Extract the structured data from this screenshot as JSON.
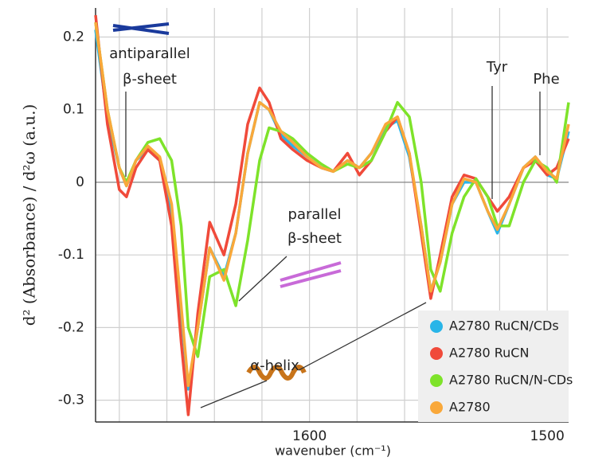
{
  "chart_data": {
    "type": "line",
    "y_label": "d² (Absorbance) / d²ω (a.u.)",
    "x_label": "wavenuber (cm⁻¹)",
    "annotations": [
      "antiparallel",
      "β-sheet",
      "parallel",
      "β-sheet",
      "α-helix",
      "Tyr",
      "Phe"
    ],
    "x": [
      1690,
      1685,
      1680,
      1677,
      1673,
      1668,
      1663,
      1658,
      1654,
      1651,
      1647,
      1642,
      1636,
      1631,
      1626,
      1621,
      1617,
      1612,
      1607,
      1601,
      1595,
      1590,
      1584,
      1579,
      1574,
      1568,
      1563,
      1558,
      1553,
      1549,
      1545,
      1540,
      1535,
      1530,
      1525,
      1521,
      1516,
      1510,
      1505,
      1500,
      1496,
      1491
    ],
    "series": [
      {
        "name": "A2780 RuCN/CDs",
        "color": "#29b5e8",
        "values": [
          0.21,
          0.09,
          0.02,
          -0.005,
          0.03,
          0.045,
          0.03,
          -0.04,
          -0.18,
          -0.285,
          -0.2,
          -0.09,
          -0.13,
          -0.07,
          0.04,
          0.11,
          0.1,
          0.065,
          0.05,
          0.035,
          0.02,
          0.015,
          0.03,
          0.02,
          0.04,
          0.075,
          0.085,
          0.035,
          -0.06,
          -0.15,
          -0.11,
          -0.03,
          0.0,
          0.0,
          -0.04,
          -0.07,
          -0.03,
          0.02,
          0.035,
          0.01,
          0.005,
          0.07
        ]
      },
      {
        "name": "A2780 RuCN",
        "color": "#f04a3a",
        "values": [
          0.23,
          0.08,
          -0.01,
          -0.02,
          0.02,
          0.045,
          0.03,
          -0.06,
          -0.22,
          -0.32,
          -0.18,
          -0.055,
          -0.1,
          -0.03,
          0.08,
          0.13,
          0.11,
          0.06,
          0.045,
          0.03,
          0.02,
          0.015,
          0.04,
          0.01,
          0.03,
          0.07,
          0.09,
          0.04,
          -0.07,
          -0.16,
          -0.1,
          -0.02,
          0.01,
          0.005,
          -0.02,
          -0.04,
          -0.02,
          0.02,
          0.03,
          0.01,
          0.02,
          0.06
        ]
      },
      {
        "name": "A2780 RuCN/N-CDs",
        "color": "#7ee32a",
        "values": [
          0.22,
          0.1,
          0.02,
          0.0,
          0.03,
          0.055,
          0.06,
          0.03,
          -0.06,
          -0.2,
          -0.24,
          -0.13,
          -0.12,
          -0.17,
          -0.08,
          0.03,
          0.075,
          0.07,
          0.06,
          0.04,
          0.025,
          0.015,
          0.025,
          0.02,
          0.03,
          0.07,
          0.11,
          0.09,
          0.0,
          -0.12,
          -0.15,
          -0.07,
          -0.02,
          0.005,
          -0.02,
          -0.06,
          -0.06,
          0.0,
          0.03,
          0.02,
          0.0,
          0.11
        ]
      },
      {
        "name": "A2780",
        "color": "#f9a83a",
        "values": [
          0.22,
          0.1,
          0.02,
          -0.005,
          0.03,
          0.05,
          0.035,
          -0.03,
          -0.17,
          -0.28,
          -0.2,
          -0.09,
          -0.135,
          -0.07,
          0.04,
          0.11,
          0.1,
          0.07,
          0.055,
          0.035,
          0.02,
          0.015,
          0.03,
          0.02,
          0.04,
          0.08,
          0.09,
          0.04,
          -0.06,
          -0.15,
          -0.11,
          -0.03,
          0.005,
          0.0,
          -0.04,
          -0.065,
          -0.03,
          0.02,
          0.035,
          0.015,
          0.005,
          0.08
        ]
      }
    ],
    "xlim": [
      1690,
      1491
    ],
    "xticks": [
      {
        "value": 1680,
        "label": null
      },
      {
        "value": 1660,
        "label": null
      },
      {
        "value": 1640,
        "label": null
      },
      {
        "value": 1620,
        "label": null
      },
      1600,
      {
        "value": 1580,
        "label": null
      },
      {
        "value": 1560,
        "label": null
      },
      {
        "value": 1540,
        "label": null
      },
      {
        "value": 1520,
        "label": null
      },
      1500
    ],
    "ylim": [
      -0.33,
      0.24
    ],
    "yticks": [
      -0.3,
      -0.2,
      -0.1,
      0,
      0.1,
      0.2
    ],
    "grid": true
  }
}
